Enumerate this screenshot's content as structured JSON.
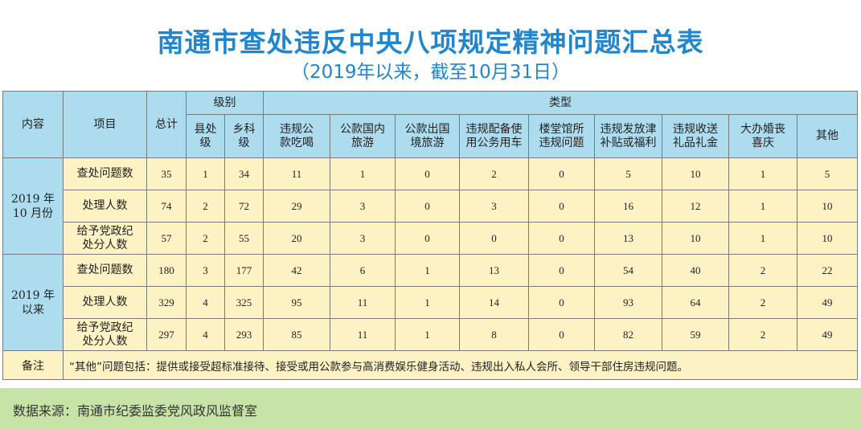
{
  "title": "南通市查处违反中央八项规定精神问题汇总表",
  "subtitle": "（2019年以来，截至10月31日）",
  "headers": {
    "content": "内容",
    "item": "项目",
    "total": "总计",
    "level": "级别",
    "county": "县处级",
    "town": "乡科级",
    "type": "类型",
    "categories": [
      "违规公款吃喝",
      "公款国内旅游",
      "公款出国境旅游",
      "违规配备使用公务用车",
      "楼堂馆所违规问题",
      "违规发放津补贴或福利",
      "违规收送礼品礼金",
      "大办婚丧喜庆",
      "其他"
    ]
  },
  "groups": [
    {
      "label": "2019 年\n10 月份",
      "rows": [
        {
          "item": "查处问题数",
          "total": "35",
          "county": "1",
          "town": "34",
          "values": [
            "11",
            "1",
            "0",
            "2",
            "0",
            "5",
            "10",
            "1",
            "5"
          ]
        },
        {
          "item": "处理人数",
          "total": "74",
          "county": "2",
          "town": "72",
          "values": [
            "29",
            "3",
            "0",
            "3",
            "0",
            "16",
            "12",
            "1",
            "10"
          ]
        },
        {
          "item": "给予党政纪处分人数",
          "total": "57",
          "county": "2",
          "town": "55",
          "values": [
            "20",
            "3",
            "0",
            "0",
            "0",
            "13",
            "10",
            "1",
            "10"
          ]
        }
      ]
    },
    {
      "label": "2019 年\n以来",
      "rows": [
        {
          "item": "查处问题数",
          "total": "180",
          "county": "3",
          "town": "177",
          "values": [
            "42",
            "6",
            "1",
            "13",
            "0",
            "54",
            "40",
            "2",
            "22"
          ]
        },
        {
          "item": "处理人数",
          "total": "329",
          "county": "4",
          "town": "325",
          "values": [
            "95",
            "11",
            "1",
            "14",
            "0",
            "93",
            "64",
            "2",
            "49"
          ]
        },
        {
          "item": "给予党政纪处分人数",
          "total": "297",
          "county": "4",
          "town": "293",
          "values": [
            "85",
            "11",
            "1",
            "8",
            "0",
            "82",
            "59",
            "2",
            "49"
          ]
        }
      ]
    }
  ],
  "note": {
    "label": "备注",
    "text": "“其他”问题包括：提供或接受超标准接待、接受或用公款参与高消费娱乐健身活动、违规出入私人会所、领导干部住房违规问题。"
  },
  "source": "数据来源：南通市纪委监委党风政风监督室",
  "colors": {
    "title": "#1f86cf",
    "header_bg": "#aedcef",
    "cell_bg": "#fdf2c4",
    "footer_bg": "#c8e3a8"
  }
}
